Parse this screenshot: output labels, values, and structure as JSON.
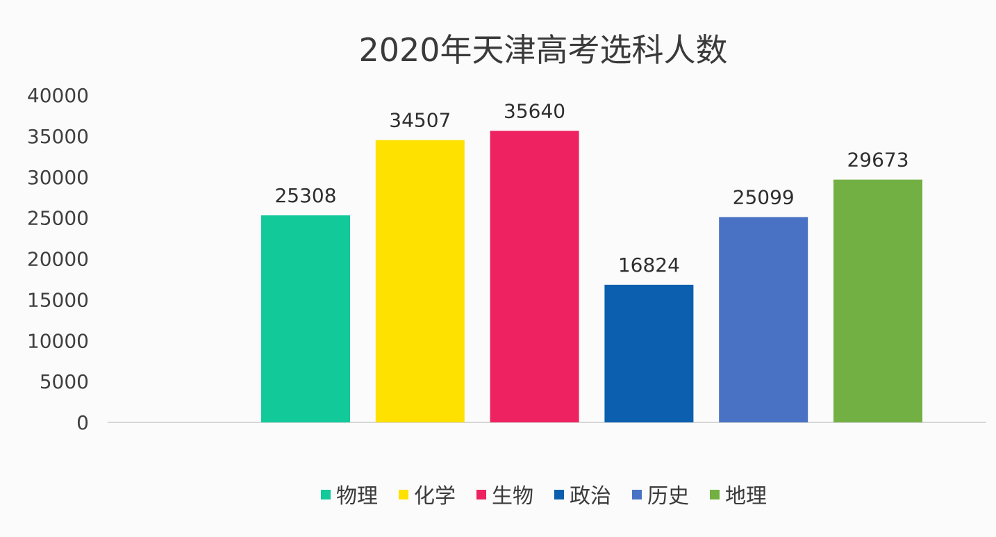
{
  "chart_data": {
    "type": "bar",
    "title": "2020年天津高考选科人数",
    "categories": [
      "物理",
      "化学",
      "生物",
      "政治",
      "历史",
      "地理"
    ],
    "values": [
      25308,
      34507,
      35640,
      16824,
      25099,
      29673
    ],
    "data_labels": [
      "25308",
      "34507",
      "35640",
      "16824",
      "25099",
      "29673"
    ],
    "colors": [
      "#12c99a",
      "#ffe100",
      "#ee2260",
      "#0b5fae",
      "#4a72c4",
      "#72b043"
    ],
    "ylim": [
      0,
      40000
    ],
    "yticks": [
      0,
      5000,
      10000,
      15000,
      20000,
      25000,
      30000,
      35000,
      40000
    ],
    "ytick_labels": [
      "0",
      "5000",
      "10000",
      "15000",
      "20000",
      "25000",
      "30000",
      "35000",
      "40000"
    ],
    "grid": false,
    "legend": "bottom",
    "xlabel": "",
    "ylabel": ""
  }
}
